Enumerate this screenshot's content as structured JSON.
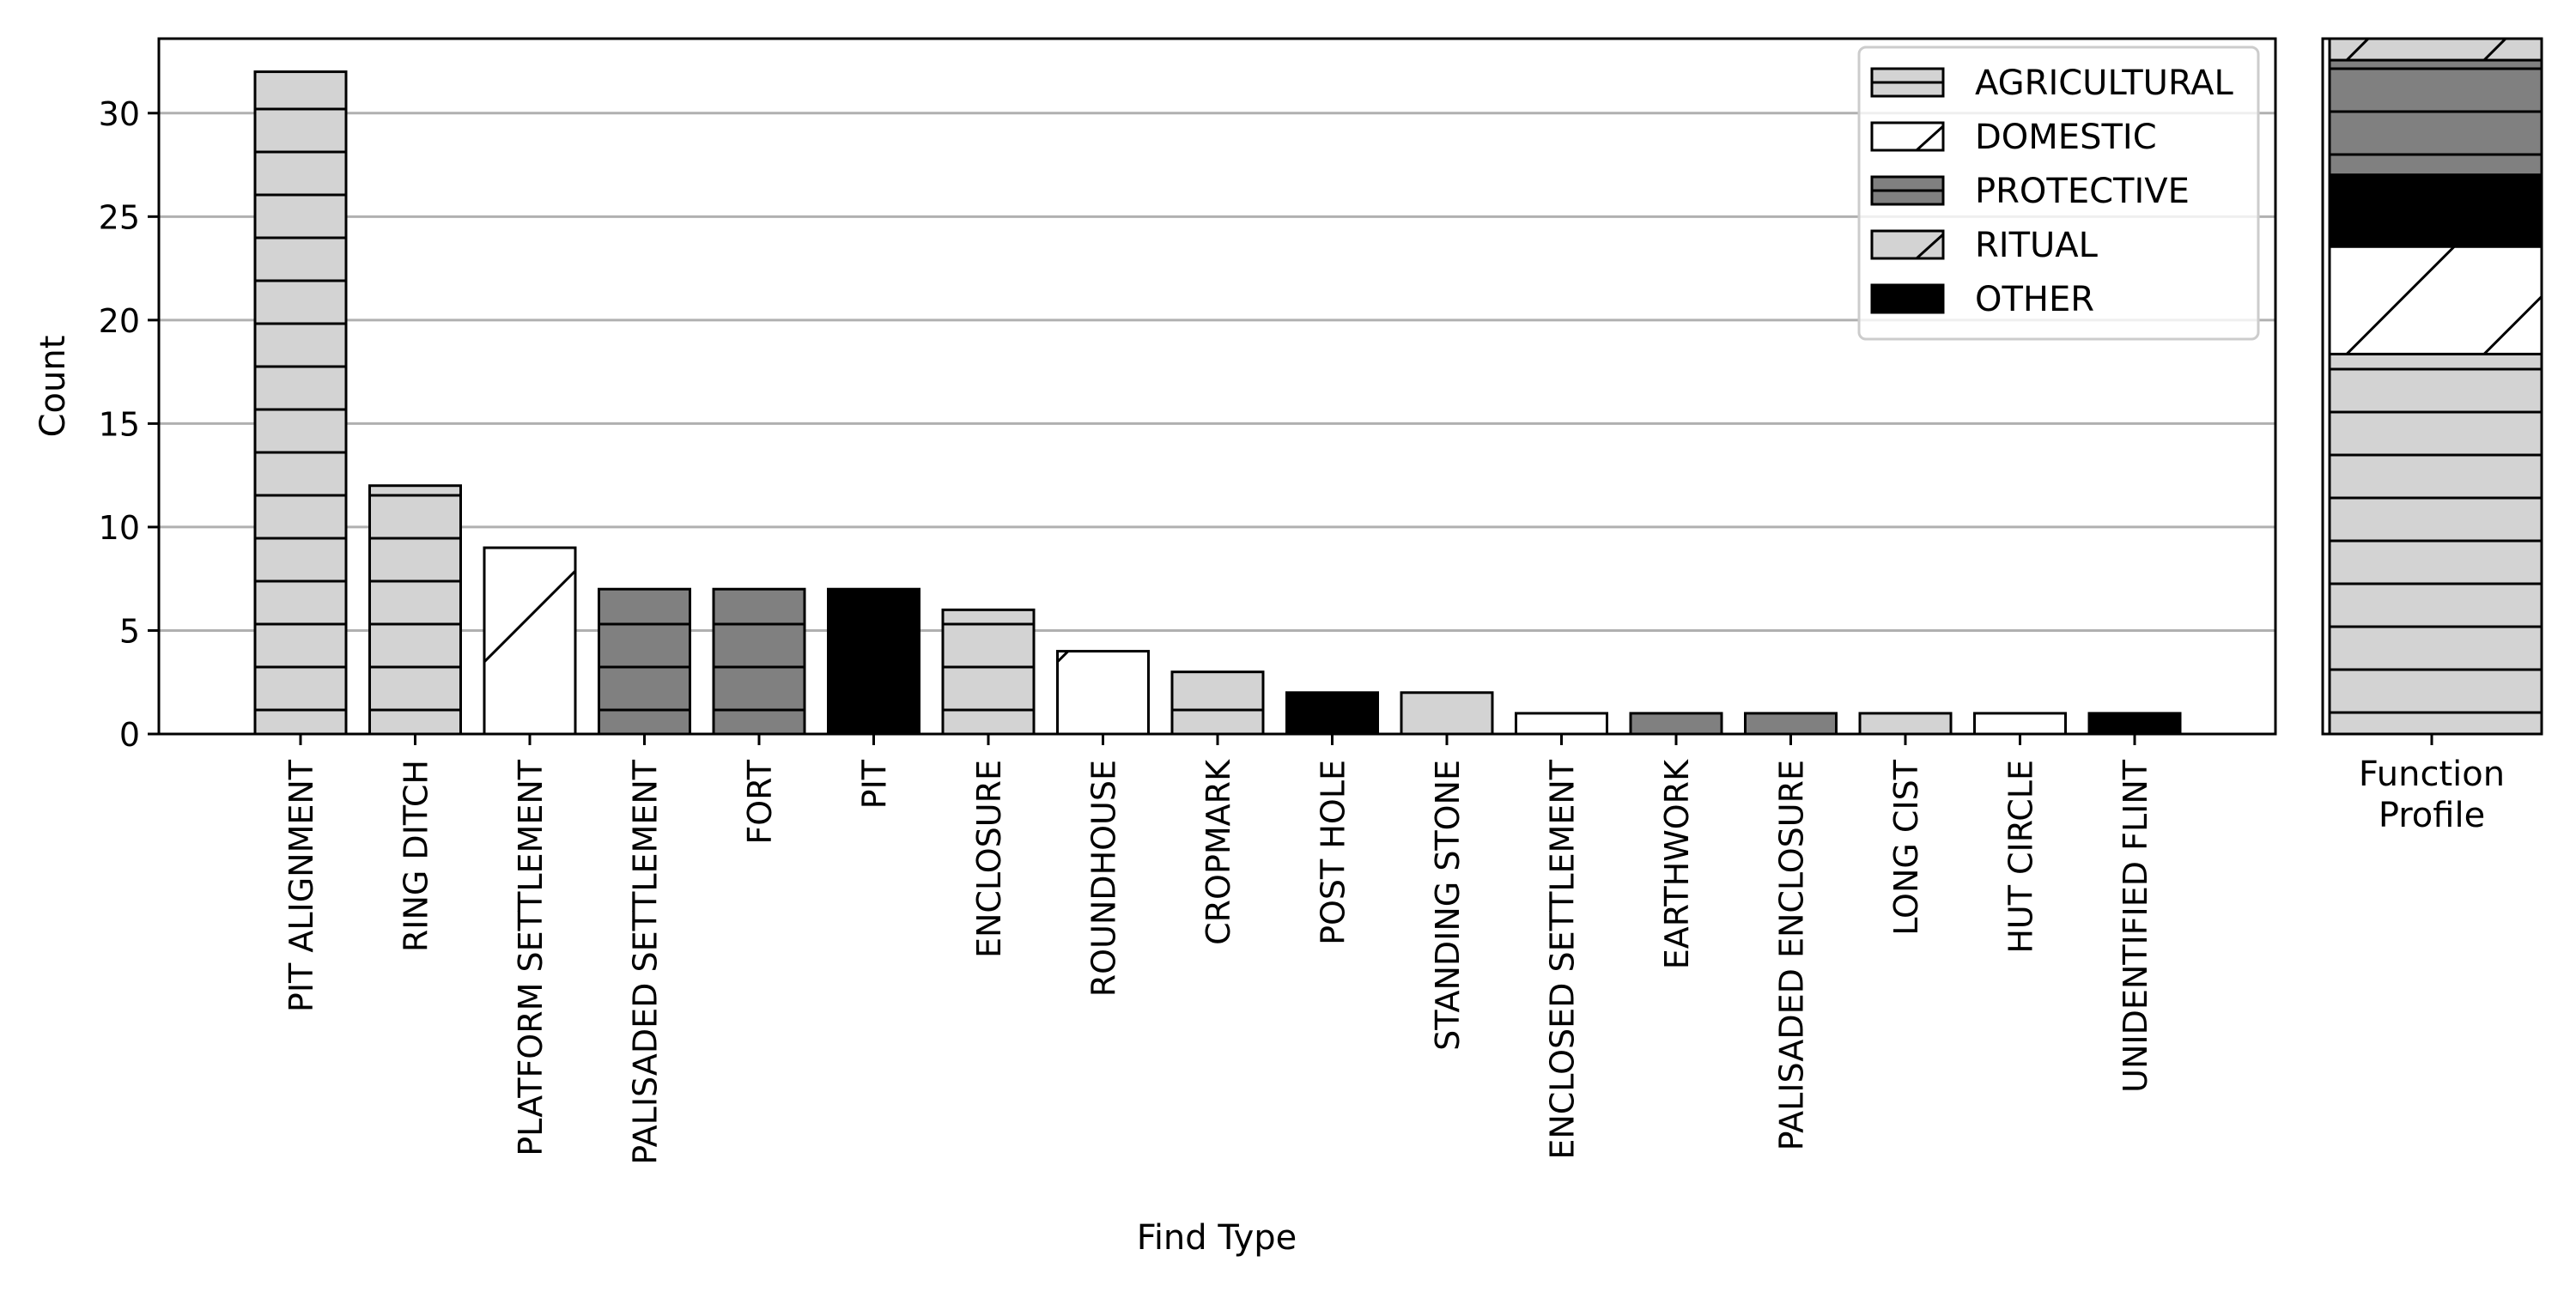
{
  "chart_data": [
    {
      "type": "bar",
      "xlabel": "Find Type",
      "ylabel": "Count",
      "ylim": [
        0,
        33.6
      ],
      "yticks": [
        0,
        5,
        10,
        15,
        20,
        25,
        30
      ],
      "grid": "horizontal",
      "legend_position": "top-right",
      "categories": [
        "PIT ALIGNMENT",
        "RING DITCH",
        "PLATFORM SETTLEMENT",
        "PALISADED SETTLEMENT",
        "FORT",
        "PIT",
        "ENCLOSURE",
        "ROUNDHOUSE",
        "CROPMARK",
        "POST HOLE",
        "STANDING STONE",
        "ENCLOSED SETTLEMENT",
        "EARTHWORK",
        "PALISADED ENCLOSURE",
        "LONG CIST",
        "HUT CIRCLE",
        "UNIDENTIFIED FLINT"
      ],
      "values": [
        32,
        12,
        9,
        7,
        7,
        7,
        6,
        4,
        3,
        2,
        2,
        1,
        1,
        1,
        1,
        1,
        1
      ],
      "functions": [
        "AGRICULTURAL",
        "AGRICULTURAL",
        "DOMESTIC",
        "PROTECTIVE",
        "PROTECTIVE",
        "OTHER",
        "AGRICULTURAL",
        "DOMESTIC",
        "AGRICULTURAL",
        "OTHER",
        "RITUAL",
        "DOMESTIC",
        "PROTECTIVE",
        "PROTECTIVE",
        "RITUAL",
        "DOMESTIC",
        "OTHER"
      ],
      "legend": [
        {
          "name": "AGRICULTURAL",
          "fill": "#d3d3d3",
          "hatch": "horizontal"
        },
        {
          "name": "DOMESTIC",
          "fill": "#ffffff",
          "hatch": "diagonal"
        },
        {
          "name": "PROTECTIVE",
          "fill": "#808080",
          "hatch": "horizontal"
        },
        {
          "name": "RITUAL",
          "fill": "#d3d3d3",
          "hatch": "diagonal"
        },
        {
          "name": "OTHER",
          "fill": "#000000",
          "hatch": "none"
        }
      ]
    },
    {
      "type": "bar",
      "stacked": true,
      "categories": [
        "Function Profile"
      ],
      "series": [
        {
          "name": "AGRICULTURAL",
          "value": 53
        },
        {
          "name": "DOMESTIC",
          "value": 15
        },
        {
          "name": "OTHER",
          "value": 10
        },
        {
          "name": "PROTECTIVE",
          "value": 16
        },
        {
          "name": "RITUAL",
          "value": 3
        }
      ]
    }
  ]
}
